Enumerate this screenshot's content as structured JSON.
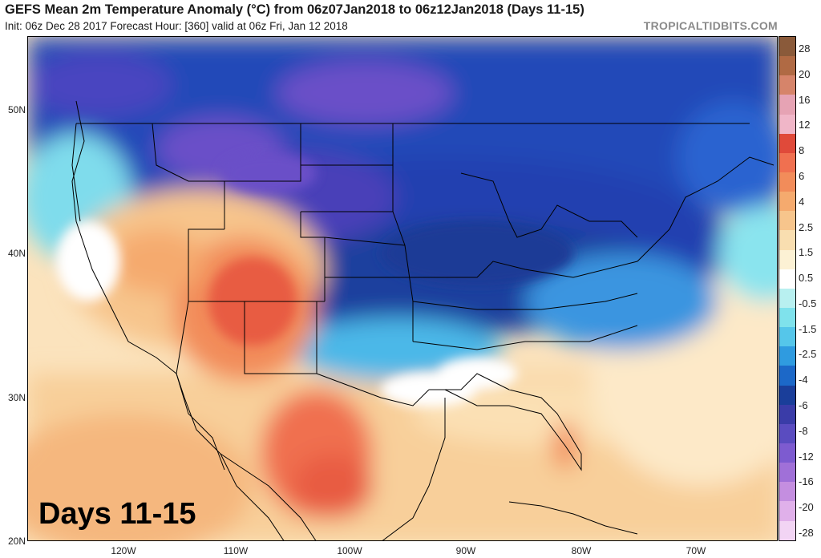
{
  "header": {
    "title": "GEFS Mean 2m Temperature Anomaly (°C) from 06z07Jan2018 to 06z12Jan2018 (Days 11-15)",
    "subtitle": "Init: 06z Dec 28 2017   Forecast Hour: [360]   valid at 06z Fri, Jan 12 2018",
    "watermark": "TROPICALTIDBITS.COM"
  },
  "map": {
    "overlay_label": "Days 11-15",
    "lat_labels": [
      "50N",
      "40N",
      "30N",
      "20N"
    ],
    "lon_labels": [
      "120W",
      "110W",
      "100W",
      "90W",
      "80W",
      "70W"
    ]
  },
  "colorbar": {
    "labels": [
      "28",
      "20",
      "16",
      "12",
      "8",
      "6",
      "4",
      "2.5",
      "1.5",
      "0.5",
      "-0.5",
      "-1.5",
      "-2.5",
      "-4",
      "-6",
      "-8",
      "-12",
      "-16",
      "-20",
      "-28"
    ],
    "colors": [
      "#8a5a3a",
      "#b06a44",
      "#d6846a",
      "#e6a3b4",
      "#f0b6c8",
      "#e04a3a",
      "#f07050",
      "#f28c5a",
      "#f5aa6e",
      "#f7c58c",
      "#f9deb0",
      "#fcf1d4",
      "#ffffff",
      "#b8f0f0",
      "#7fe2ec",
      "#55c6ea",
      "#2f9be0",
      "#1c68c8",
      "#1a3e9a",
      "#3a3ca8",
      "#5a4cc0",
      "#7d5bd0",
      "#a070d8",
      "#c48ee0",
      "#e0b0ea",
      "#f2d4f4"
    ]
  }
}
